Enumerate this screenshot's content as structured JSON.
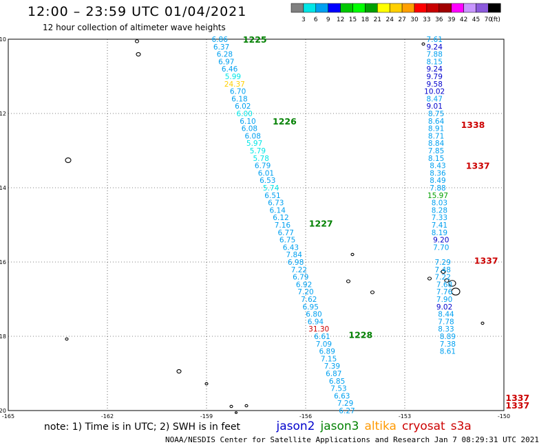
{
  "header": {
    "title": "12:00 – 23:59 UTC 01/04/2021",
    "subtitle": "12 hour collection of altimeter wave heights"
  },
  "colorbar": {
    "colors": [
      "#808080",
      "#00e6e6",
      "#00a0f0",
      "#0000ff",
      "#00c800",
      "#00ff00",
      "#00a000",
      "#ffff00",
      "#ffd000",
      "#ffa000",
      "#ff0000",
      "#c80000",
      "#a00000",
      "#ff00ff",
      "#c896ff",
      "#8c5adc",
      "#000000"
    ],
    "labels": [
      "3",
      "6",
      "9",
      "12",
      "15",
      "18",
      "21",
      "24",
      "27",
      "30",
      "33",
      "36",
      "39",
      "42",
      "45",
      "70"
    ],
    "unit": "(ft)"
  },
  "footer": {
    "note": "note: 1) Time is in UTC; 2) SWH is in feet",
    "satellites": [
      {
        "name": "jason2",
        "color": "#0000cc"
      },
      {
        "name": "jason3",
        "color": "#008000"
      },
      {
        "name": "altika",
        "color": "#ff9900"
      },
      {
        "name": "cryosat",
        "color": "#cc0000"
      },
      {
        "name": "s3a",
        "color": "#cc0000"
      }
    ],
    "credit": "NOAA/NESDIS Center for Satellite Applications and Research   Jan  7 08:29:31 UTC 2021"
  },
  "chart_data": {
    "type": "scatter",
    "xlim": [
      -165,
      -150
    ],
    "ylim": [
      -20,
      -10
    ],
    "xticks": [
      "-165",
      "-162",
      "-159",
      "-156",
      "-153",
      "-150"
    ],
    "yticks": [
      "-10",
      "-12",
      "-14",
      "-16",
      "-18",
      "-20"
    ],
    "grid": true,
    "passes": [
      {
        "label": "1225",
        "x": -157.9,
        "y": -10.0,
        "color": "#008000"
      },
      {
        "label": "1226",
        "x": -157.0,
        "y": -12.2,
        "color": "#008000"
      },
      {
        "label": "1227",
        "x": -155.9,
        "y": -14.95,
        "color": "#008000"
      },
      {
        "label": "1228",
        "x": -154.7,
        "y": -17.95,
        "color": "#008000"
      },
      {
        "label": "1338",
        "x": -151.3,
        "y": -12.3,
        "color": "#cc0000"
      },
      {
        "label": "1337",
        "x": -151.15,
        "y": -13.4,
        "color": "#cc0000"
      },
      {
        "label": "1337",
        "x": -150.9,
        "y": -15.95,
        "color": "#cc0000"
      },
      {
        "label": "1337",
        "x": -149.95,
        "y": -19.65,
        "color": "#cc0000"
      },
      {
        "label": "1337",
        "x": -149.95,
        "y": -19.85,
        "color": "#cc0000"
      }
    ],
    "series": [
      {
        "satellite": "track-1226-1228",
        "points": [
          {
            "v": "6.86",
            "x": -158.6,
            "y": -10.0,
            "c": "#00a0f0"
          },
          {
            "v": "6.37",
            "x": -158.55,
            "y": -10.2,
            "c": "#00a0f0"
          },
          {
            "v": "6.28",
            "x": -158.45,
            "y": -10.4,
            "c": "#00a0f0"
          },
          {
            "v": "6.97",
            "x": -158.4,
            "y": -10.6,
            "c": "#00a0f0"
          },
          {
            "v": "6.46",
            "x": -158.3,
            "y": -10.8,
            "c": "#00a0f0"
          },
          {
            "v": "5.99",
            "x": -158.2,
            "y": -11.0,
            "c": "#00e6e6"
          },
          {
            "v": "24.37",
            "x": -158.15,
            "y": -11.2,
            "c": "#ffd000"
          },
          {
            "v": "6.70",
            "x": -158.05,
            "y": -11.4,
            "c": "#00a0f0"
          },
          {
            "v": "6.18",
            "x": -158.0,
            "y": -11.6,
            "c": "#00a0f0"
          },
          {
            "v": "6.02",
            "x": -157.9,
            "y": -11.8,
            "c": "#00a0f0"
          },
          {
            "v": "6.00",
            "x": -157.85,
            "y": -12.0,
            "c": "#00e6e6"
          },
          {
            "v": "6.10",
            "x": -157.75,
            "y": -12.2,
            "c": "#00a0f0"
          },
          {
            "v": "6.08",
            "x": -157.7,
            "y": -12.4,
            "c": "#00a0f0"
          },
          {
            "v": "6.08",
            "x": -157.6,
            "y": -12.6,
            "c": "#00a0f0"
          },
          {
            "v": "5.97",
            "x": -157.55,
            "y": -12.8,
            "c": "#00e6e6"
          },
          {
            "v": "5.79",
            "x": -157.45,
            "y": -13.0,
            "c": "#00e6e6"
          },
          {
            "v": "5.78",
            "x": -157.35,
            "y": -13.2,
            "c": "#00e6e6"
          },
          {
            "v": "6.79",
            "x": -157.3,
            "y": -13.4,
            "c": "#00a0f0"
          },
          {
            "v": "6.01",
            "x": -157.2,
            "y": -13.6,
            "c": "#00a0f0"
          },
          {
            "v": "6.53",
            "x": -157.15,
            "y": -13.8,
            "c": "#00a0f0"
          },
          {
            "v": "5.74",
            "x": -157.05,
            "y": -14.0,
            "c": "#00e6e6"
          },
          {
            "v": "6.51",
            "x": -157.0,
            "y": -14.2,
            "c": "#00a0f0"
          },
          {
            "v": "6.73",
            "x": -156.9,
            "y": -14.4,
            "c": "#00a0f0"
          },
          {
            "v": "6.14",
            "x": -156.85,
            "y": -14.6,
            "c": "#00a0f0"
          },
          {
            "v": "6.12",
            "x": -156.75,
            "y": -14.8,
            "c": "#00a0f0"
          },
          {
            "v": "7.16",
            "x": -156.7,
            "y": -15.0,
            "c": "#00a0f0"
          },
          {
            "v": "6.77",
            "x": -156.6,
            "y": -15.2,
            "c": "#00a0f0"
          },
          {
            "v": "6.75",
            "x": -156.55,
            "y": -15.4,
            "c": "#00a0f0"
          },
          {
            "v": "6.43",
            "x": -156.45,
            "y": -15.6,
            "c": "#00a0f0"
          },
          {
            "v": "7.84",
            "x": -156.35,
            "y": -15.8,
            "c": "#00a0f0"
          },
          {
            "v": "6.98",
            "x": -156.3,
            "y": -16.0,
            "c": "#00a0f0"
          },
          {
            "v": "7.22",
            "x": -156.2,
            "y": -16.2,
            "c": "#00a0f0"
          },
          {
            "v": "6.79",
            "x": -156.15,
            "y": -16.4,
            "c": "#00a0f0"
          },
          {
            "v": "6.92",
            "x": -156.05,
            "y": -16.6,
            "c": "#00a0f0"
          },
          {
            "v": "7.20",
            "x": -156.0,
            "y": -16.8,
            "c": "#00a0f0"
          },
          {
            "v": "7.62",
            "x": -155.9,
            "y": -17.0,
            "c": "#00a0f0"
          },
          {
            "v": "6.95",
            "x": -155.85,
            "y": -17.2,
            "c": "#00a0f0"
          },
          {
            "v": "6.80",
            "x": -155.75,
            "y": -17.4,
            "c": "#00a0f0"
          },
          {
            "v": "6.94",
            "x": -155.7,
            "y": -17.6,
            "c": "#00a0f0"
          },
          {
            "v": "31.30",
            "x": -155.6,
            "y": -17.8,
            "c": "#cc0000"
          },
          {
            "v": "6.61",
            "x": -155.5,
            "y": -18.0,
            "c": "#00a0f0"
          },
          {
            "v": "7.09",
            "x": -155.45,
            "y": -18.2,
            "c": "#00a0f0"
          },
          {
            "v": "6.89",
            "x": -155.35,
            "y": -18.4,
            "c": "#00a0f0"
          },
          {
            "v": "7.15",
            "x": -155.3,
            "y": -18.6,
            "c": "#00a0f0"
          },
          {
            "v": "7.39",
            "x": -155.2,
            "y": -18.8,
            "c": "#00a0f0"
          },
          {
            "v": "6.87",
            "x": -155.15,
            "y": -19.0,
            "c": "#00a0f0"
          },
          {
            "v": "6.85",
            "x": -155.05,
            "y": -19.2,
            "c": "#00a0f0"
          },
          {
            "v": "7.53",
            "x": -155.0,
            "y": -19.4,
            "c": "#00a0f0"
          },
          {
            "v": "6.63",
            "x": -154.9,
            "y": -19.6,
            "c": "#00a0f0"
          },
          {
            "v": "7.29",
            "x": -154.8,
            "y": -19.8,
            "c": "#00a0f0"
          },
          {
            "v": "6.27",
            "x": -154.75,
            "y": -20.0,
            "c": "#00a0f0"
          }
        ]
      },
      {
        "satellite": "track-1337-1338",
        "points": [
          {
            "v": "7.61",
            "x": -152.1,
            "y": -10.0,
            "c": "#00a0f0"
          },
          {
            "v": "9.24",
            "x": -152.1,
            "y": -10.2,
            "c": "#0000cc"
          },
          {
            "v": "7.88",
            "x": -152.1,
            "y": -10.4,
            "c": "#00a0f0"
          },
          {
            "v": "8.15",
            "x": -152.1,
            "y": -10.6,
            "c": "#00a0f0"
          },
          {
            "v": "9.24",
            "x": -152.1,
            "y": -10.8,
            "c": "#0000cc"
          },
          {
            "v": "9.79",
            "x": -152.1,
            "y": -11.0,
            "c": "#0000cc"
          },
          {
            "v": "9.58",
            "x": -152.1,
            "y": -11.2,
            "c": "#0000cc"
          },
          {
            "v": "10.02",
            "x": -152.1,
            "y": -11.4,
            "c": "#0000cc"
          },
          {
            "v": "8.47",
            "x": -152.1,
            "y": -11.6,
            "c": "#00a0f0"
          },
          {
            "v": "9.01",
            "x": -152.1,
            "y": -11.8,
            "c": "#0000cc"
          },
          {
            "v": "8.75",
            "x": -152.05,
            "y": -12.0,
            "c": "#00a0f0"
          },
          {
            "v": "8.64",
            "x": -152.05,
            "y": -12.2,
            "c": "#00a0f0"
          },
          {
            "v": "8.91",
            "x": -152.05,
            "y": -12.4,
            "c": "#00a0f0"
          },
          {
            "v": "8.71",
            "x": -152.05,
            "y": -12.6,
            "c": "#00a0f0"
          },
          {
            "v": "8.84",
            "x": -152.05,
            "y": -12.8,
            "c": "#00a0f0"
          },
          {
            "v": "7.85",
            "x": -152.05,
            "y": -13.0,
            "c": "#00a0f0"
          },
          {
            "v": "8.15",
            "x": -152.05,
            "y": -13.2,
            "c": "#00a0f0"
          },
          {
            "v": "8.43",
            "x": -152.0,
            "y": -13.4,
            "c": "#00a0f0"
          },
          {
            "v": "8.36",
            "x": -152.0,
            "y": -13.6,
            "c": "#00a0f0"
          },
          {
            "v": "8.49",
            "x": -152.0,
            "y": -13.8,
            "c": "#00a0f0"
          },
          {
            "v": "7.88",
            "x": -152.0,
            "y": -14.0,
            "c": "#00a0f0"
          },
          {
            "v": "15.97",
            "x": -152.0,
            "y": -14.2,
            "c": "#00a000"
          },
          {
            "v": "8.03",
            "x": -151.95,
            "y": -14.4,
            "c": "#00a0f0"
          },
          {
            "v": "8.28",
            "x": -151.95,
            "y": -14.6,
            "c": "#00a0f0"
          },
          {
            "v": "7.33",
            "x": -151.95,
            "y": -14.8,
            "c": "#00a0f0"
          },
          {
            "v": "7.41",
            "x": -151.95,
            "y": -15.0,
            "c": "#00a0f0"
          },
          {
            "v": "8.19",
            "x": -151.95,
            "y": -15.2,
            "c": "#00a0f0"
          },
          {
            "v": "9.20",
            "x": -151.9,
            "y": -15.4,
            "c": "#0000cc"
          },
          {
            "v": "7.70",
            "x": -151.9,
            "y": -15.6,
            "c": "#00a0f0"
          },
          {
            "v": "7.29",
            "x": -151.85,
            "y": -16.0,
            "c": "#00a0f0"
          },
          {
            "v": "7.48",
            "x": -151.85,
            "y": -16.2,
            "c": "#00a0f0"
          },
          {
            "v": "7.22",
            "x": -151.85,
            "y": -16.4,
            "c": "#00a0f0"
          },
          {
            "v": "7.68",
            "x": -151.8,
            "y": -16.6,
            "c": "#00a0f0"
          },
          {
            "v": "7.76",
            "x": -151.8,
            "y": -16.8,
            "c": "#00a0f0"
          },
          {
            "v": "7.90",
            "x": -151.8,
            "y": -17.0,
            "c": "#00a0f0"
          },
          {
            "v": "9.02",
            "x": -151.8,
            "y": -17.2,
            "c": "#0000cc"
          },
          {
            "v": "8.44",
            "x": -151.75,
            "y": -17.4,
            "c": "#00a0f0"
          },
          {
            "v": "7.78",
            "x": -151.75,
            "y": -17.6,
            "c": "#00a0f0"
          },
          {
            "v": "8.33",
            "x": -151.75,
            "y": -17.8,
            "c": "#00a0f0"
          },
          {
            "v": "8.89",
            "x": -151.7,
            "y": -18.0,
            "c": "#00a0f0"
          },
          {
            "v": "7.38",
            "x": -151.7,
            "y": -18.2,
            "c": "#00a0f0"
          },
          {
            "v": "8.61",
            "x": -151.7,
            "y": -18.4,
            "c": "#00a0f0"
          }
        ]
      }
    ]
  }
}
